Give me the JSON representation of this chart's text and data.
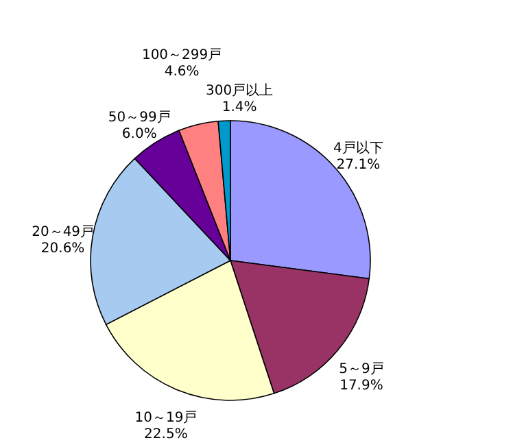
{
  "chart_data": {
    "type": "pie",
    "categories": [
      "4戸以下",
      "5～9戸",
      "10～19戸",
      "20～49戸",
      "50～99戸",
      "100～299戸",
      "300戸以上"
    ],
    "values": [
      27.1,
      17.9,
      22.5,
      20.6,
      6.0,
      4.6,
      1.4
    ],
    "value_labels": [
      "27.1%",
      "17.9%",
      "22.5%",
      "20.6%",
      "6.0%",
      "4.6%",
      "1.4%"
    ],
    "colors": [
      "#9999ff",
      "#993366",
      "#ffffcc",
      "#a6caf0",
      "#660099",
      "#ff8080",
      "#0099cc"
    ],
    "data_labels": true
  }
}
